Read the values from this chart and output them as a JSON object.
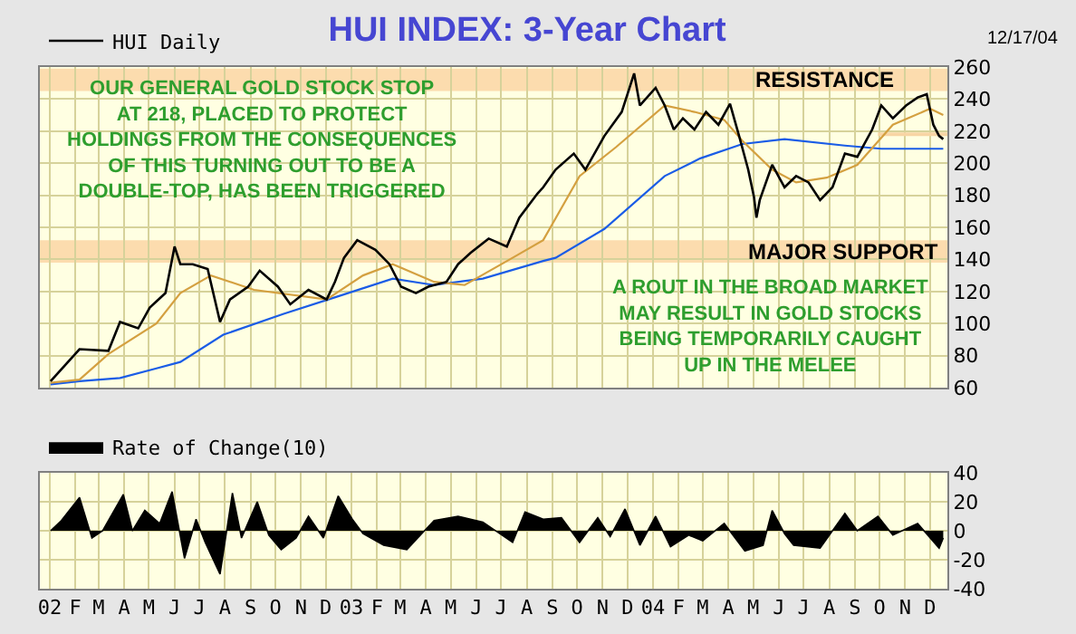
{
  "chart_data": [
    {
      "type": "line",
      "title": "HUI INDEX: 3-Year Chart",
      "legend": "top left",
      "grid": true,
      "tick_labels": "y",
      "xlim": [
        "2001-12-20",
        "2004-12-22"
      ],
      "xticks": [
        {
          "value": "2002-01-01",
          "label": null
        },
        {
          "value": "2002-02-01",
          "label": null
        },
        {
          "value": "2002-03-01",
          "label": null
        },
        {
          "value": "2002-04-01",
          "label": null
        },
        {
          "value": "2002-05-01",
          "label": null
        },
        {
          "value": "2002-06-01",
          "label": null
        },
        {
          "value": "2002-07-01",
          "label": null
        },
        {
          "value": "2002-08-01",
          "label": null
        },
        {
          "value": "2002-09-01",
          "label": null
        },
        {
          "value": "2002-10-01",
          "label": null
        },
        {
          "value": "2002-11-01",
          "label": null
        },
        {
          "value": "2002-12-01",
          "label": null
        },
        {
          "value": "2003-01-01",
          "label": null
        },
        {
          "value": "2003-02-01",
          "label": null
        },
        {
          "value": "2003-03-01",
          "label": null
        },
        {
          "value": "2003-04-01",
          "label": null
        },
        {
          "value": "2003-05-01",
          "label": null
        },
        {
          "value": "2003-06-01",
          "label": null
        },
        {
          "value": "2003-07-01",
          "label": null
        },
        {
          "value": "2003-08-01",
          "label": null
        },
        {
          "value": "2003-09-01",
          "label": null
        },
        {
          "value": "2003-10-01",
          "label": null
        },
        {
          "value": "2003-11-01",
          "label": null
        },
        {
          "value": "2003-12-01",
          "label": null
        },
        {
          "value": "2004-01-01",
          "label": null
        },
        {
          "value": "2004-02-01",
          "label": null
        },
        {
          "value": "2004-03-01",
          "label": null
        },
        {
          "value": "2004-04-01",
          "label": null
        },
        {
          "value": "2004-05-01",
          "label": null
        },
        {
          "value": "2004-06-01",
          "label": null
        },
        {
          "value": "2004-07-01",
          "label": null
        },
        {
          "value": "2004-08-01",
          "label": null
        },
        {
          "value": "2004-09-01",
          "label": null
        },
        {
          "value": "2004-10-01",
          "label": null
        },
        {
          "value": "2004-11-01",
          "label": null
        },
        {
          "value": "2004-12-01",
          "label": null
        }
      ],
      "ylim": [
        60,
        260
      ],
      "yticks": [
        60,
        80,
        100,
        120,
        140,
        160,
        180,
        200,
        220,
        240,
        260
      ],
      "bands": [
        {
          "axis": "y",
          "from": 245,
          "to": 259,
          "label": "RESISTANCE",
          "color": "#fcdcae"
        },
        {
          "axis": "y",
          "from": 138,
          "to": 152,
          "label": "MAJOR SUPPORT",
          "color": "#fcdcae"
        }
      ],
      "annotations": [
        "OUR GENERAL GOLD STOCK STOP\nAT 218, PLACED TO PROTECT\nHOLDINGS FROM THE CONSEQUENCES\nOF THIS TURNING OUT TO BE A\nDOUBLE-TOP, HAS BEEN TRIGGERED",
        "A ROUT IN THE BROAD MARKET\nMAY RESULT IN GOLD STOCKS\nBEING TEMPORARILY CAUGHT\nUP IN THE MELEE",
        "12/17/04"
      ],
      "series": [
        {
          "color": "#f8d5a4",
          "x": [
            "2004-09-29",
            "2004-12-22"
          ],
          "values": [
            218,
            218
          ]
        },
        {
          "color": "#1a5ce6",
          "x": [
            "2002-01-02",
            "2002-02-06",
            "2002-03-27",
            "2002-05-10",
            "2002-06-08",
            "2002-07-30",
            "2002-10-11",
            "2002-12-16",
            "2003-02-20",
            "2003-04-11",
            "2003-06-09",
            "2003-08-21",
            "2003-09-05",
            "2003-11-03",
            "2004-01-15",
            "2004-02-27",
            "2004-04-18",
            "2004-06-08",
            "2004-08-20",
            "2004-10-03",
            "2004-12-17"
          ],
          "values": [
            62,
            64,
            66,
            72,
            76,
            93,
            106,
            117,
            128,
            124,
            128,
            139,
            141,
            159,
            192,
            203,
            212,
            215,
            211,
            209,
            209
          ]
        },
        {
          "color": "#d4a040",
          "x": [
            "2002-01-02",
            "2002-02-06",
            "2002-03-13",
            "2002-05-10",
            "2002-06-08",
            "2002-07-15",
            "2002-09-05",
            "2002-12-02",
            "2003-01-15",
            "2003-02-20",
            "2003-04-11",
            "2003-05-18",
            "2003-07-15",
            "2003-08-21",
            "2003-10-04",
            "2003-11-17",
            "2004-01-15",
            "2004-02-20",
            "2004-03-27",
            "2004-04-18",
            "2004-05-24",
            "2004-06-22",
            "2004-07-29",
            "2004-09-04",
            "2004-10-17",
            "2004-12-01",
            "2004-12-17"
          ],
          "values": [
            63,
            65,
            81,
            100,
            119,
            130,
            121,
            115,
            130,
            137,
            126,
            124,
            141,
            152,
            192,
            210,
            236,
            232,
            227,
            214,
            196,
            188,
            191,
            199,
            224,
            234,
            230
          ]
        },
        {
          "name": "HUI Daily",
          "color": "#000000",
          "x": [
            "2002-01-02",
            "2002-02-06",
            "2002-03-13",
            "2002-03-27",
            "2002-04-18",
            "2002-05-02",
            "2002-05-21",
            "2002-06-01",
            "2002-06-08",
            "2002-06-23",
            "2002-07-11",
            "2002-07-26",
            "2002-08-07",
            "2002-08-29",
            "2002-09-12",
            "2002-10-04",
            "2002-10-19",
            "2002-11-10",
            "2002-12-02",
            "2002-12-12",
            "2002-12-23",
            "2003-01-08",
            "2003-01-30",
            "2003-02-16",
            "2003-03-02",
            "2003-03-20",
            "2003-04-04",
            "2003-04-26",
            "2003-05-10",
            "2003-05-25",
            "2003-06-16",
            "2003-07-08",
            "2003-07-23",
            "2003-08-14",
            "2003-08-21",
            "2003-09-05",
            "2003-09-27",
            "2003-10-11",
            "2003-11-03",
            "2003-11-24",
            "2003-12-09",
            "2003-12-16",
            "2004-01-04",
            "2004-01-15",
            "2004-01-26",
            "2004-02-06",
            "2004-02-20",
            "2004-03-05",
            "2004-03-20",
            "2004-04-03",
            "2004-04-14",
            "2004-04-25",
            "2004-05-02",
            "2004-05-05",
            "2004-05-09",
            "2004-05-24",
            "2004-06-08",
            "2004-06-22",
            "2004-07-07",
            "2004-07-21",
            "2004-08-05",
            "2004-08-20",
            "2004-09-04",
            "2004-09-22",
            "2004-10-03",
            "2004-10-17",
            "2004-11-02",
            "2004-11-16",
            "2004-11-27",
            "2004-12-05",
            "2004-12-12",
            "2004-12-17"
          ],
          "values": [
            64,
            84,
            83,
            101,
            97,
            110,
            119,
            148,
            137,
            137,
            134,
            101,
            115,
            123,
            133,
            123,
            112,
            121,
            115,
            126,
            141,
            152,
            146,
            137,
            123,
            119,
            123,
            126,
            137,
            144,
            153,
            148,
            166,
            181,
            185,
            196,
            206,
            196,
            217,
            232,
            256,
            236,
            247,
            236,
            221,
            228,
            221,
            232,
            224,
            237,
            217,
            196,
            179,
            166,
            177,
            199,
            185,
            192,
            188,
            177,
            185,
            206,
            204,
            221,
            236,
            228,
            236,
            241,
            243,
            224,
            217,
            215
          ]
        }
      ]
    },
    {
      "type": "area",
      "legend": "top left",
      "grid": true,
      "xlim": [
        "2001-12-20",
        "2004-12-22"
      ],
      "xticks": [
        {
          "value": "2002-01-01",
          "label": "02"
        },
        {
          "value": "2002-02-01",
          "label": "F"
        },
        {
          "value": "2002-03-01",
          "label": "M"
        },
        {
          "value": "2002-04-01",
          "label": "A"
        },
        {
          "value": "2002-05-01",
          "label": "M"
        },
        {
          "value": "2002-06-01",
          "label": "J"
        },
        {
          "value": "2002-07-01",
          "label": "J"
        },
        {
          "value": "2002-08-01",
          "label": "A"
        },
        {
          "value": "2002-09-01",
          "label": "S"
        },
        {
          "value": "2002-10-01",
          "label": "O"
        },
        {
          "value": "2002-11-01",
          "label": "N"
        },
        {
          "value": "2002-12-01",
          "label": "D"
        },
        {
          "value": "2003-01-01",
          "label": "03"
        },
        {
          "value": "2003-02-01",
          "label": "F"
        },
        {
          "value": "2003-03-01",
          "label": "M"
        },
        {
          "value": "2003-04-01",
          "label": "A"
        },
        {
          "value": "2003-05-01",
          "label": "M"
        },
        {
          "value": "2003-06-01",
          "label": "J"
        },
        {
          "value": "2003-07-01",
          "label": "J"
        },
        {
          "value": "2003-08-01",
          "label": "A"
        },
        {
          "value": "2003-09-01",
          "label": "S"
        },
        {
          "value": "2003-10-01",
          "label": "O"
        },
        {
          "value": "2003-11-01",
          "label": "N"
        },
        {
          "value": "2003-12-01",
          "label": "D"
        },
        {
          "value": "2004-01-01",
          "label": "04"
        },
        {
          "value": "2004-02-01",
          "label": "F"
        },
        {
          "value": "2004-03-01",
          "label": "M"
        },
        {
          "value": "2004-04-01",
          "label": "A"
        },
        {
          "value": "2004-05-01",
          "label": "M"
        },
        {
          "value": "2004-06-01",
          "label": "J"
        },
        {
          "value": "2004-07-01",
          "label": "J"
        },
        {
          "value": "2004-08-01",
          "label": "A"
        },
        {
          "value": "2004-09-01",
          "label": "S"
        },
        {
          "value": "2004-10-01",
          "label": "O"
        },
        {
          "value": "2004-11-01",
          "label": "N"
        },
        {
          "value": "2004-12-01",
          "label": "D"
        }
      ],
      "ylim": [
        -40,
        40
      ],
      "yticks": [
        -40,
        -20,
        0,
        20,
        40
      ],
      "series": [
        {
          "name": "Rate of Change(10)",
          "color": "#000000",
          "x": [
            "2002-01-02",
            "2002-01-15",
            "2002-02-06",
            "2002-02-21",
            "2002-03-06",
            "2002-03-31",
            "2002-04-11",
            "2002-04-26",
            "2002-05-14",
            "2002-05-29",
            "2002-06-13",
            "2002-06-27",
            "2002-07-08",
            "2002-07-26",
            "2002-08-10",
            "2002-08-21",
            "2002-09-09",
            "2002-09-23",
            "2002-10-08",
            "2002-10-26",
            "2002-11-10",
            "2002-11-28",
            "2002-12-16",
            "2003-01-02",
            "2003-01-15",
            "2003-02-09",
            "2003-03-09",
            "2003-03-27",
            "2003-04-11",
            "2003-05-10",
            "2003-06-09",
            "2003-07-15",
            "2003-07-30",
            "2003-08-21",
            "2003-09-12",
            "2003-10-04",
            "2003-10-26",
            "2003-11-10",
            "2003-11-28",
            "2003-12-16",
            "2004-01-04",
            "2004-01-22",
            "2004-02-13",
            "2004-03-01",
            "2004-03-27",
            "2004-04-21",
            "2004-05-13",
            "2004-05-24",
            "2004-06-08",
            "2004-06-19",
            "2004-07-21",
            "2004-08-20",
            "2004-09-04",
            "2004-09-29",
            "2004-10-17",
            "2004-11-16",
            "2004-12-12",
            "2004-12-17"
          ],
          "values": [
            0,
            7,
            23,
            -5,
            0,
            25,
            0,
            14,
            5,
            27,
            -19,
            8,
            -8,
            -30,
            26,
            -5,
            20,
            -3,
            -13,
            -5,
            10,
            -5,
            24,
            8,
            -2,
            -10,
            -13,
            -2,
            7,
            10,
            6,
            -8,
            13,
            8,
            9,
            -8,
            9,
            -4,
            15,
            -10,
            10,
            -11,
            -3,
            -7,
            5,
            -14,
            -10,
            14,
            -2,
            -10,
            -12,
            12,
            0,
            10,
            -3,
            5,
            -12,
            -5
          ]
        }
      ]
    }
  ]
}
